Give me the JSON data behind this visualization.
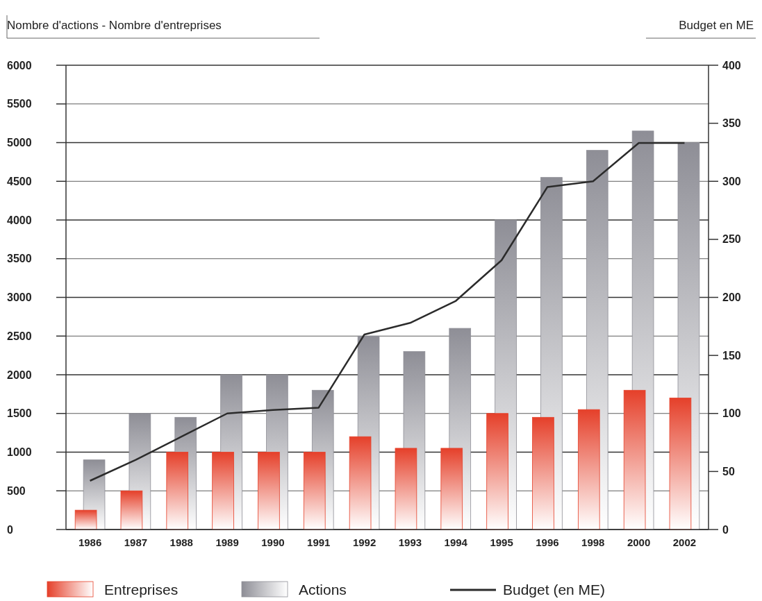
{
  "chart_data": {
    "type": "bar",
    "ylabel": "Nombre d'actions - Nombre d'entreprises",
    "y2label": "Budget en ME",
    "categories": [
      "1986",
      "1987",
      "1988",
      "1989",
      "1990",
      "1991",
      "1992",
      "1993",
      "1994",
      "1995",
      "1996",
      "1998",
      "2000",
      "2002"
    ],
    "series": [
      {
        "name": "Actions",
        "color": "#8e8e96",
        "values": [
          900,
          1500,
          1450,
          2000,
          2000,
          1800,
          2500,
          2300,
          2600,
          4000,
          4550,
          4900,
          5150,
          5000
        ]
      },
      {
        "name": "Entreprises",
        "color": "#e5402a",
        "values": [
          250,
          500,
          1000,
          1000,
          1000,
          1000,
          1200,
          1050,
          1050,
          1500,
          1450,
          1550,
          1800,
          1700
        ]
      },
      {
        "name": "Budget (en ME)",
        "type": "line",
        "axis": "y2",
        "color": "#2b2b2b",
        "values": [
          42,
          60,
          80,
          100,
          103,
          105,
          168,
          178,
          197,
          232,
          295,
          300,
          333,
          333
        ]
      }
    ],
    "ylim": [
      0,
      6000
    ],
    "yticks": [
      0,
      500,
      1000,
      1500,
      2000,
      2500,
      3000,
      3500,
      4000,
      4500,
      5000,
      5500,
      6000
    ],
    "y2lim": [
      0,
      400
    ],
    "y2ticks": [
      0,
      50,
      100,
      150,
      200,
      250,
      300,
      350,
      400
    ],
    "grid": "y",
    "legend": "bottom",
    "marker": "none",
    "line_style": "solid"
  }
}
